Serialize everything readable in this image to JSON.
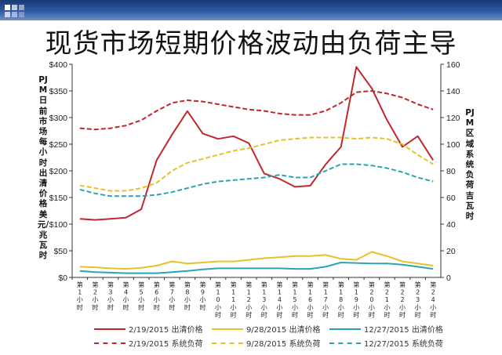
{
  "slide": {
    "title": "现货市场短期价格波动由负荷主导",
    "left_axis_label": "PJM日前市场每小时出清价格美元/兆瓦时",
    "right_axis_label": "PJM区域系统负荷吉瓦时",
    "header_color": "#2e5aa5"
  },
  "chart_data": {
    "type": "line",
    "categories": [
      "第1小时",
      "第2小时",
      "第3小时",
      "第4小时",
      "第5小时",
      "第6小时",
      "第7小时",
      "第8小时",
      "第9小时",
      "第10小时",
      "第11小时",
      "第12小时",
      "第13小时",
      "第14小时",
      "第15小时",
      "第16小时",
      "第17小时",
      "第18小时",
      "第19小时",
      "第20小时",
      "第21小时",
      "第22小时",
      "第23小时",
      "第24小时"
    ],
    "y_left": {
      "min": 0,
      "max": 400,
      "step": 50,
      "prefix": "$",
      "ticks": [
        "$0",
        "$50",
        "$100",
        "$150",
        "$200",
        "$250",
        "$300",
        "$350",
        "$400"
      ]
    },
    "y_right": {
      "min": 0,
      "max": 160,
      "step": 20,
      "ticks": [
        "0",
        "20",
        "40",
        "60",
        "80",
        "100",
        "120",
        "140",
        "160"
      ]
    },
    "series": [
      {
        "name": "2/19/2015 出清价格",
        "axis": "left",
        "style": "solid",
        "color": "#c0272d",
        "values": [
          110,
          108,
          110,
          112,
          128,
          220,
          268,
          312,
          270,
          260,
          265,
          252,
          195,
          185,
          170,
          172,
          212,
          245,
          395,
          355,
          295,
          245,
          265,
          220
        ]
      },
      {
        "name": "9/28/2015 出清价格",
        "axis": "left",
        "style": "solid",
        "color": "#e6c229",
        "values": [
          20,
          19,
          17,
          16,
          18,
          22,
          30,
          26,
          28,
          30,
          30,
          33,
          36,
          38,
          40,
          40,
          42,
          35,
          33,
          48,
          40,
          30,
          26,
          22
        ]
      },
      {
        "name": "12/27/2015 出清价格",
        "axis": "left",
        "style": "solid",
        "color": "#2aa4b4",
        "values": [
          12,
          10,
          9,
          8,
          8,
          8,
          10,
          12,
          15,
          17,
          17,
          17,
          17,
          17,
          16,
          16,
          20,
          28,
          27,
          26,
          26,
          24,
          20,
          16
        ]
      },
      {
        "name": "2/19/2015 系统负荷",
        "axis": "right",
        "style": "dashed",
        "color": "#c0272d",
        "values": [
          112,
          111,
          112,
          114,
          118,
          125,
          131,
          133,
          132,
          130,
          128,
          126,
          125,
          123,
          122,
          122,
          125,
          131,
          139,
          140,
          138,
          135,
          130,
          126
        ]
      },
      {
        "name": "9/28/2015 系统负荷",
        "axis": "right",
        "style": "dashed",
        "color": "#e6c229",
        "values": [
          69,
          67,
          65,
          65,
          67,
          71,
          80,
          86,
          89,
          92,
          95,
          97,
          100,
          103,
          104,
          105,
          105,
          105,
          104,
          105,
          104,
          100,
          92,
          85
        ]
      },
      {
        "name": "12/27/2015 系统负荷",
        "axis": "right",
        "style": "dashed",
        "color": "#2aa4b4",
        "values": [
          66,
          63,
          61,
          61,
          61,
          62,
          64,
          67,
          70,
          72,
          73,
          74,
          75,
          77,
          75,
          75,
          80,
          85,
          85,
          84,
          82,
          79,
          75,
          72
        ]
      }
    ],
    "grid": false,
    "legend_position": "bottom"
  }
}
